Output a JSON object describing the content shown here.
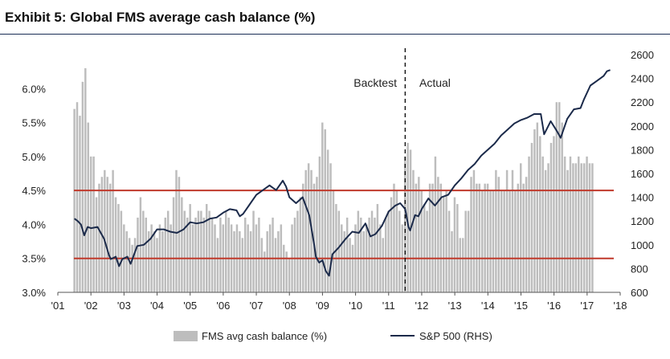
{
  "chart_data": {
    "type": "bar+line",
    "title": "Exhibit 5: Global FMS average cash balance (%)",
    "left_axis": {
      "ylim": [
        3.0,
        6.5
      ],
      "ticks": [
        3.0,
        3.5,
        4.0,
        4.5,
        5.0,
        5.5,
        6.0
      ],
      "tick_labels": [
        "3.0%",
        "3.5%",
        "4.0%",
        "4.5%",
        "5.0%",
        "5.5%",
        "6.0%"
      ]
    },
    "right_axis": {
      "ylim": [
        600,
        2600
      ],
      "ticks": [
        600,
        800,
        1000,
        1200,
        1400,
        1600,
        1800,
        2000,
        2200,
        2400,
        2600
      ],
      "tick_labels": [
        "600",
        "800",
        "1000",
        "1200",
        "1400",
        "1600",
        "1800",
        "2000",
        "2200",
        "2400",
        "2600"
      ]
    },
    "x_axis": {
      "range": [
        2001.0,
        2018.0
      ],
      "ticks": [
        2001,
        2002,
        2003,
        2004,
        2005,
        2006,
        2007,
        2008,
        2009,
        2010,
        2011,
        2012,
        2013,
        2014,
        2015,
        2016,
        2017,
        2018
      ],
      "tick_labels": [
        "'01",
        "'02",
        "'03",
        "'04",
        "'05",
        "'06",
        "'07",
        "'08",
        "'09",
        "'10",
        "'11",
        "'12",
        "'13",
        "'14",
        "'15",
        "'16",
        "'17",
        "'18"
      ]
    },
    "reference_lines": [
      {
        "axis": "left",
        "value": 4.5,
        "color": "#c0392b"
      },
      {
        "axis": "left",
        "value": 3.5,
        "color": "#c0392b"
      }
    ],
    "divider": {
      "x": 2011.5,
      "left_label": "Backtest",
      "right_label": "Actual"
    },
    "series": [
      {
        "name": "FMS avg cash balance (%)",
        "type": "bar",
        "axis": "left",
        "color": "#bdbdbd",
        "start": 2001.5,
        "step": 0.0833,
        "values": [
          5.7,
          5.8,
          5.6,
          6.1,
          6.3,
          5.5,
          5.0,
          5.0,
          4.4,
          4.6,
          4.7,
          4.8,
          4.7,
          4.6,
          4.8,
          4.4,
          4.3,
          4.2,
          4.0,
          3.9,
          3.8,
          3.7,
          3.8,
          4.1,
          4.4,
          4.2,
          4.1,
          3.9,
          4.0,
          3.9,
          3.8,
          4.0,
          3.9,
          4.1,
          4.2,
          4.0,
          4.4,
          4.8,
          4.7,
          4.4,
          4.2,
          4.1,
          4.3,
          4.0,
          4.1,
          4.2,
          4.2,
          4.1,
          4.3,
          4.2,
          4.1,
          4.0,
          3.8,
          4.1,
          4.0,
          4.2,
          4.1,
          4.0,
          3.9,
          4.0,
          3.9,
          3.8,
          4.1,
          4.0,
          3.9,
          4.2,
          4.0,
          4.1,
          3.8,
          3.6,
          3.9,
          4.0,
          4.1,
          3.8,
          3.9,
          4.0,
          3.7,
          3.6,
          3.5,
          4.0,
          4.1,
          4.2,
          4.4,
          4.6,
          4.8,
          4.9,
          4.8,
          4.6,
          4.7,
          5.0,
          5.5,
          5.4,
          5.1,
          4.9,
          4.5,
          4.3,
          4.2,
          4.0,
          3.9,
          4.1,
          3.8,
          3.7,
          4.0,
          4.2,
          4.1,
          3.9,
          4.0,
          4.1,
          4.2,
          4.1,
          4.3,
          4.0,
          3.8,
          4.1,
          4.2,
          4.4,
          4.6,
          4.5,
          4.2,
          4.0,
          5.0,
          5.2,
          5.1,
          4.8,
          4.6,
          4.7,
          4.5,
          4.3,
          4.2,
          4.6,
          4.6,
          5.0,
          4.7,
          4.6,
          4.4,
          4.5,
          4.2,
          3.9,
          4.4,
          4.3,
          3.8,
          3.8,
          4.2,
          4.2,
          4.7,
          4.8,
          4.6,
          4.6,
          4.5,
          4.6,
          4.6,
          4.5,
          4.5,
          4.8,
          4.7,
          4.5,
          4.5,
          4.8,
          4.5,
          4.8,
          4.5,
          4.6,
          4.9,
          4.6,
          4.7,
          5.0,
          5.2,
          5.4,
          5.5,
          5.3,
          5.0,
          4.8,
          4.9,
          5.2,
          5.3,
          5.8,
          5.8,
          5.5,
          5.0,
          4.8,
          5.0,
          4.9,
          4.9,
          5.0,
          4.9,
          4.9,
          5.0,
          4.9,
          4.9
        ]
      },
      {
        "name": "S&P 500 (RHS)",
        "type": "line",
        "axis": "right",
        "color": "#1b2a4a",
        "x": [
          2001.5,
          2001.6,
          2001.7,
          2001.8,
          2001.9,
          2002.0,
          2002.2,
          2002.4,
          2002.55,
          2002.6,
          2002.75,
          2002.85,
          2002.95,
          2003.1,
          2003.2,
          2003.4,
          2003.6,
          2003.8,
          2004.0,
          2004.2,
          2004.4,
          2004.6,
          2004.8,
          2005.0,
          2005.2,
          2005.4,
          2005.6,
          2005.8,
          2006.0,
          2006.2,
          2006.4,
          2006.5,
          2006.6,
          2006.8,
          2007.0,
          2007.2,
          2007.4,
          2007.5,
          2007.6,
          2007.8,
          2007.9,
          2008.0,
          2008.2,
          2008.4,
          2008.6,
          2008.75,
          2008.8,
          2008.9,
          2009.0,
          2009.1,
          2009.2,
          2009.3,
          2009.5,
          2009.7,
          2009.9,
          2010.1,
          2010.3,
          2010.45,
          2010.6,
          2010.8,
          2011.0,
          2011.2,
          2011.35,
          2011.5,
          2011.6,
          2011.65,
          2011.8,
          2011.9,
          2012.0,
          2012.2,
          2012.4,
          2012.6,
          2012.8,
          2013.0,
          2013.2,
          2013.4,
          2013.6,
          2013.8,
          2014.0,
          2014.2,
          2014.4,
          2014.6,
          2014.8,
          2015.0,
          2015.2,
          2015.4,
          2015.6,
          2015.7,
          2015.9,
          2016.1,
          2016.2,
          2016.4,
          2016.6,
          2016.8,
          2016.9,
          2017.1,
          2017.3,
          2017.5,
          2017.6,
          2017.7
        ],
        "y": [
          1220,
          1200,
          1170,
          1080,
          1150,
          1140,
          1150,
          1050,
          910,
          880,
          900,
          820,
          880,
          900,
          840,
          990,
          1000,
          1050,
          1130,
          1130,
          1110,
          1100,
          1130,
          1190,
          1180,
          1190,
          1220,
          1230,
          1270,
          1300,
          1290,
          1240,
          1260,
          1340,
          1420,
          1460,
          1500,
          1480,
          1460,
          1540,
          1490,
          1400,
          1350,
          1400,
          1250,
          1000,
          900,
          850,
          870,
          780,
          740,
          920,
          980,
          1050,
          1110,
          1100,
          1180,
          1070,
          1090,
          1160,
          1280,
          1330,
          1350,
          1300,
          1150,
          1120,
          1250,
          1240,
          1300,
          1390,
          1330,
          1400,
          1420,
          1500,
          1560,
          1630,
          1680,
          1750,
          1800,
          1850,
          1920,
          1970,
          2020,
          2050,
          2070,
          2100,
          2100,
          1930,
          2040,
          1950,
          1900,
          2060,
          2140,
          2150,
          2220,
          2340,
          2380,
          2420,
          2460,
          2470
        ]
      }
    ]
  },
  "legend": {
    "bar_label": "FMS avg cash balance (%)",
    "line_label": "S&P 500 (RHS)"
  }
}
